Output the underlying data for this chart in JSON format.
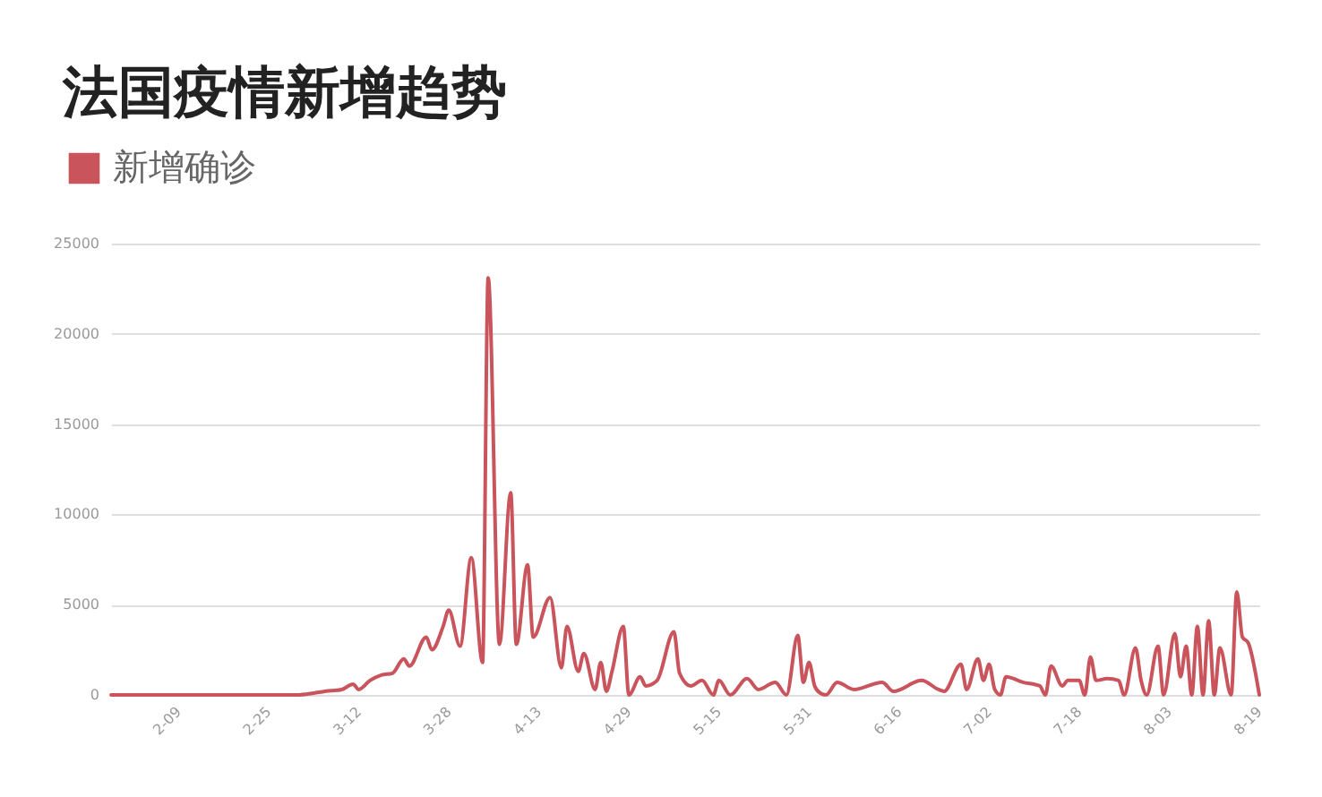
{
  "chart_data": {
    "type": "line",
    "title": "法国疫情新增趋势",
    "x": [
      "--01-28",
      "--02-09",
      "--02-25",
      "--03-01",
      "--03-04",
      "--03-06",
      "--03-09",
      "--03-11",
      "--03-12",
      "--03-14",
      "--03-16",
      "--03-18",
      "--03-20",
      "--03-21",
      "--03-24",
      "--03-25",
      "--03-27",
      "--03-28",
      "--03-30",
      "--04-01",
      "--04-03",
      "--04-04",
      "--04-06",
      "--04-08",
      "--04-09",
      "--04-11",
      "--04-12",
      "--04-15",
      "--04-17",
      "--04-18",
      "--04-20",
      "--04-21",
      "--04-23",
      "--04-24",
      "--04-25",
      "--04-26",
      "--04-28",
      "--04-29",
      "--05-01",
      "--05-02",
      "--05-04",
      "--05-07",
      "--05-08",
      "--05-10",
      "--05-12",
      "--05-14",
      "--05-15",
      "--05-17",
      "--05-20",
      "--05-22",
      "--05-25",
      "--05-27",
      "--05-29",
      "--05-30",
      "--05-31",
      "--06-01",
      "--06-02",
      "--06-03",
      "--06-05",
      "--06-08",
      "--06-13",
      "--06-15",
      "--06-20",
      "--06-23",
      "--06-24",
      "--06-27",
      "--06-28",
      "--06-30",
      "--07-01",
      "--07-02",
      "--07-03",
      "--07-04",
      "--07-05",
      "--07-08",
      "--07-11",
      "--07-12",
      "--07-13",
      "--07-15",
      "--07-16",
      "--07-18",
      "--07-19",
      "--07-20",
      "--07-21",
      "--07-23",
      "--07-25",
      "--07-26",
      "--07-28",
      "--07-29",
      "--07-30",
      "--08-01",
      "--08-02",
      "--08-04",
      "--08-05",
      "--08-06",
      "--08-07",
      "--08-08",
      "--08-09",
      "--08-10",
      "--08-11",
      "--08-12",
      "--08-14",
      "--08-15",
      "--08-16",
      "--08-17",
      "--08-19"
    ],
    "series": [
      {
        "name": "新增确诊",
        "color": "#c9545c",
        "values": [
          0,
          0,
          0,
          0,
          100,
          200,
          300,
          600,
          300,
          800,
          1100,
          1200,
          2000,
          1600,
          3200,
          2500,
          3800,
          4700,
          2700,
          7600,
          1800,
          23100,
          2800,
          11200,
          2800,
          7200,
          3200,
          5400,
          1500,
          3800,
          1300,
          2300,
          300,
          1800,
          200,
          1300,
          3800,
          0,
          1000,
          500,
          800,
          3500,
          1200,
          500,
          800,
          0,
          800,
          0,
          900,
          300,
          700,
          0,
          3300,
          700,
          1800,
          500,
          100,
          0,
          700,
          300,
          700,
          200,
          800,
          300,
          200,
          1700,
          300,
          2000,
          800,
          1700,
          300,
          0,
          1000,
          700,
          500,
          0,
          1600,
          500,
          800,
          800,
          0,
          2100,
          800,
          900,
          800,
          0,
          2600,
          800,
          0,
          2700,
          0,
          3400,
          1000,
          2700,
          0,
          3800,
          0,
          4100,
          0,
          2600,
          0,
          5700,
          3200,
          2900,
          0
        ]
      }
    ],
    "xlim": [
      "--01-28",
      "--08-19"
    ],
    "xticks": [
      {
        "value": "--02-09",
        "label": "2-09"
      },
      {
        "value": "--02-25",
        "label": "2-25"
      },
      {
        "value": "--03-12",
        "label": "3-12"
      },
      {
        "value": "--03-28",
        "label": "3-28"
      },
      {
        "value": "--04-13",
        "label": "4-13"
      },
      {
        "value": "--04-29",
        "label": "4-29"
      },
      {
        "value": "--05-15",
        "label": "5-15"
      },
      {
        "value": "--05-31",
        "label": "5-31"
      },
      {
        "value": "--06-16",
        "label": "6-16"
      },
      {
        "value": "--07-02",
        "label": "7-02"
      },
      {
        "value": "--07-18",
        "label": "7-18"
      },
      {
        "value": "--08-03",
        "label": "8-03"
      },
      {
        "value": "--08-19",
        "label": "8-19"
      }
    ],
    "ylim": [
      0,
      25000
    ],
    "yticks": [
      0,
      5000,
      10000,
      15000,
      20000,
      25000
    ],
    "grid": "y",
    "legend": "top left"
  }
}
